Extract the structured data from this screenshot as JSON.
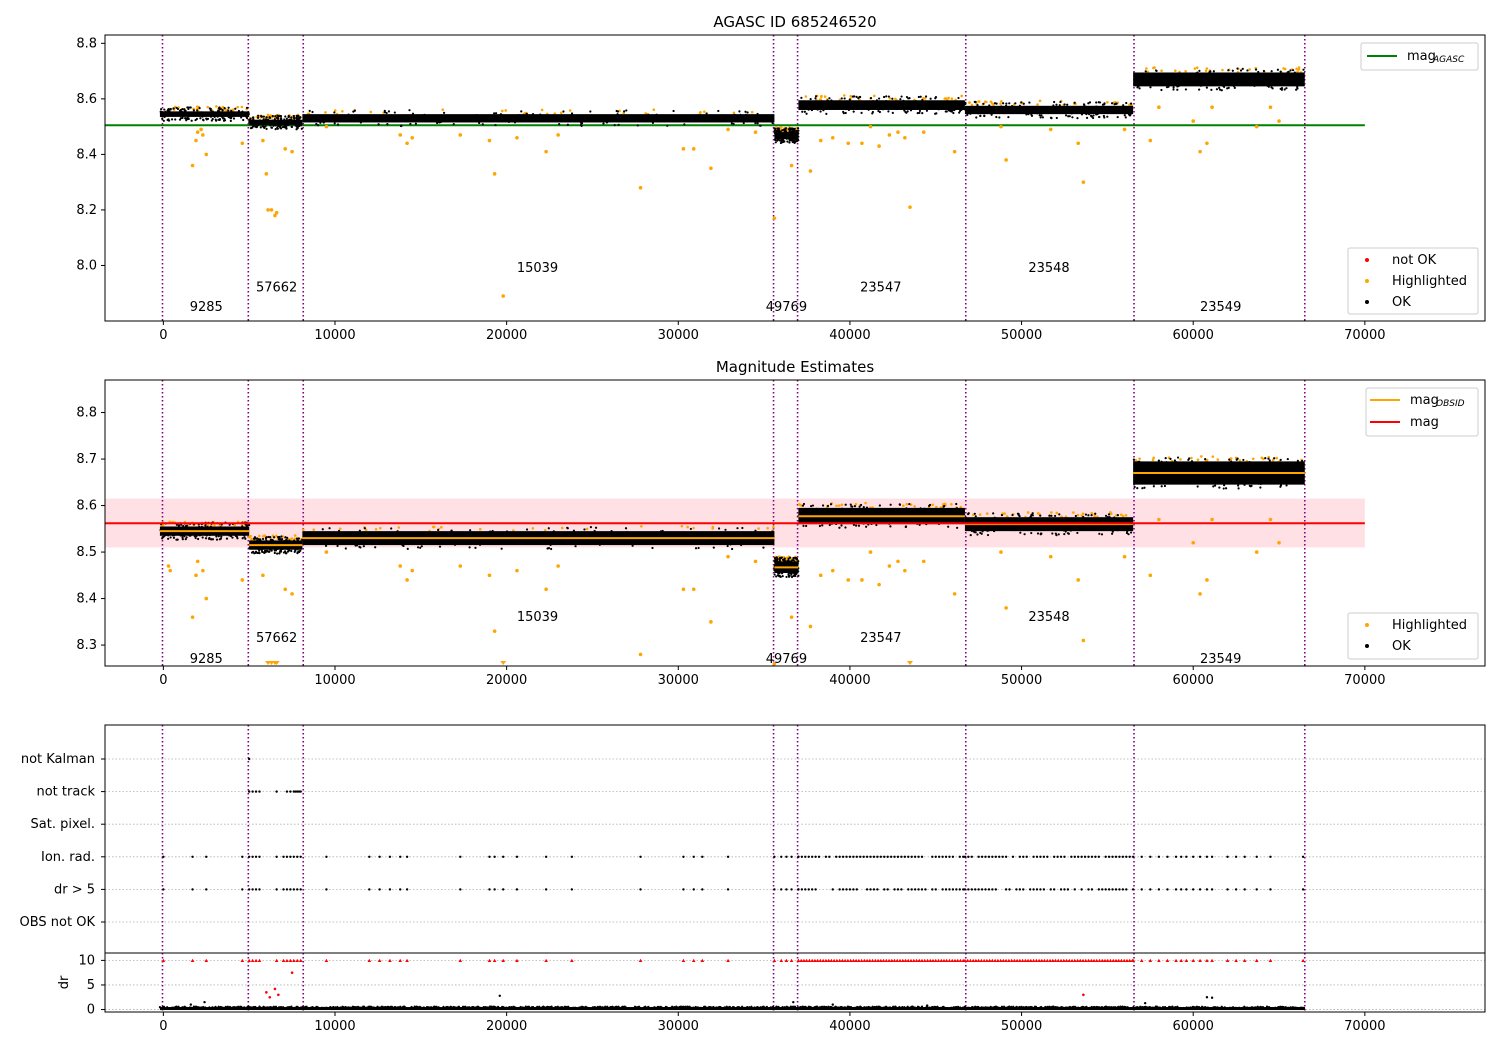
{
  "colors": {
    "ok": "#000000",
    "highlighted": "#ffa500",
    "not_ok": "#ff0000",
    "agasc_line": "#008000",
    "mag_line": "#ff0000",
    "obs_line": "#ffa500",
    "band": "#ffe0e4",
    "boundary": "#800080",
    "dark_fill": "#4a2506"
  },
  "chart_data": [
    {
      "type": "scatter",
      "title": "AGASC ID 685246520",
      "xlim": [
        -3400,
        77000
      ],
      "ylim": [
        7.8,
        8.83
      ],
      "x_ticks": [
        0,
        10000,
        20000,
        30000,
        40000,
        50000,
        60000,
        70000
      ],
      "y_ticks": [
        8.0,
        8.2,
        8.4,
        8.6,
        8.8
      ],
      "y_tick_labels": [
        "8.0",
        "8.2",
        "8.4",
        "8.6",
        "8.8"
      ],
      "mag_agasc": 8.505,
      "mag_agasc_x_range": [
        -3400,
        70000
      ],
      "legend_top": [
        {
          "label": "mag",
          "sub": "AGASC",
          "style": "line",
          "color": "agasc_line"
        }
      ],
      "legend_bottom": [
        {
          "label": "not OK",
          "color": "not_ok"
        },
        {
          "label": "Highlighted",
          "color": "highlighted"
        },
        {
          "label": "OK",
          "color": "ok"
        }
      ],
      "obsid_label_y": [
        7.85,
        7.92,
        7.99
      ],
      "highlighted_points": [
        [
          1700,
          8.36
        ],
        [
          1900,
          8.45
        ],
        [
          2000,
          8.48
        ],
        [
          2200,
          8.49
        ],
        [
          2300,
          8.47
        ],
        [
          2500,
          8.4
        ],
        [
          4600,
          8.44
        ],
        [
          5800,
          8.45
        ],
        [
          6000,
          8.33
        ],
        [
          6100,
          8.2
        ],
        [
          6300,
          8.2
        ],
        [
          6500,
          8.18
        ],
        [
          6600,
          8.19
        ],
        [
          7100,
          8.42
        ],
        [
          7500,
          8.41
        ],
        [
          9500,
          8.5
        ],
        [
          13800,
          8.47
        ],
        [
          14200,
          8.44
        ],
        [
          14500,
          8.46
        ],
        [
          17300,
          8.47
        ],
        [
          19000,
          8.45
        ],
        [
          19300,
          8.33
        ],
        [
          19800,
          7.89
        ],
        [
          20600,
          8.46
        ],
        [
          22300,
          8.41
        ],
        [
          23000,
          8.47
        ],
        [
          27800,
          8.28
        ],
        [
          30300,
          8.42
        ],
        [
          30900,
          8.42
        ],
        [
          31900,
          8.35
        ],
        [
          32900,
          8.49
        ],
        [
          34500,
          8.48
        ],
        [
          35600,
          8.17
        ],
        [
          36600,
          8.36
        ],
        [
          37700,
          8.34
        ],
        [
          38300,
          8.45
        ],
        [
          39000,
          8.46
        ],
        [
          39900,
          8.44
        ],
        [
          40700,
          8.44
        ],
        [
          41200,
          8.5
        ],
        [
          41700,
          8.43
        ],
        [
          42300,
          8.47
        ],
        [
          42800,
          8.48
        ],
        [
          43200,
          8.46
        ],
        [
          43500,
          8.21
        ],
        [
          44300,
          8.48
        ],
        [
          46100,
          8.41
        ],
        [
          48800,
          8.5
        ],
        [
          49100,
          8.38
        ],
        [
          51700,
          8.49
        ],
        [
          53300,
          8.44
        ],
        [
          53600,
          8.3
        ],
        [
          56000,
          8.49
        ],
        [
          57500,
          8.45
        ],
        [
          58000,
          8.57
        ],
        [
          60000,
          8.52
        ],
        [
          60400,
          8.41
        ],
        [
          60800,
          8.44
        ],
        [
          61100,
          8.57
        ],
        [
          63700,
          8.5
        ],
        [
          64500,
          8.57
        ],
        [
          65000,
          8.52
        ]
      ],
      "not_ok_points": []
    },
    {
      "type": "scatter",
      "title": "Magnitude Estimates",
      "xlim": [
        -3400,
        77000
      ],
      "ylim": [
        8.255,
        8.87
      ],
      "x_ticks": [
        0,
        10000,
        20000,
        30000,
        40000,
        50000,
        60000,
        70000
      ],
      "y_ticks": [
        8.3,
        8.4,
        8.5,
        8.6,
        8.7,
        8.8
      ],
      "y_tick_labels": [
        "8.3",
        "8.4",
        "8.5",
        "8.6",
        "8.7",
        "8.8"
      ],
      "mag": 8.562,
      "mag_band": [
        8.51,
        8.615
      ],
      "mag_x_range": [
        -3400,
        70000
      ],
      "legend_top": [
        {
          "label": "mag",
          "sub": "OBSID",
          "style": "line",
          "color": "obs_line"
        },
        {
          "label": "mag",
          "sub": "",
          "style": "line",
          "color": "mag_line"
        }
      ],
      "legend_bottom": [
        {
          "label": "Highlighted",
          "color": "highlighted"
        },
        {
          "label": "OK",
          "color": "ok"
        }
      ],
      "obsid_label_y": [
        8.27,
        8.315,
        8.36
      ],
      "highlighted_points": [
        [
          300,
          8.47
        ],
        [
          400,
          8.46
        ],
        [
          1700,
          8.36
        ],
        [
          1900,
          8.45
        ],
        [
          2000,
          8.48
        ],
        [
          2300,
          8.46
        ],
        [
          2500,
          8.4
        ],
        [
          4600,
          8.44
        ],
        [
          5800,
          8.45
        ],
        [
          7100,
          8.42
        ],
        [
          7500,
          8.41
        ],
        [
          9500,
          8.5
        ],
        [
          13800,
          8.47
        ],
        [
          14200,
          8.44
        ],
        [
          14500,
          8.46
        ],
        [
          17300,
          8.47
        ],
        [
          19000,
          8.45
        ],
        [
          19300,
          8.33
        ],
        [
          20600,
          8.46
        ],
        [
          22300,
          8.42
        ],
        [
          23000,
          8.47
        ],
        [
          27800,
          8.28
        ],
        [
          30300,
          8.42
        ],
        [
          30900,
          8.42
        ],
        [
          31900,
          8.35
        ],
        [
          32900,
          8.49
        ],
        [
          34500,
          8.48
        ],
        [
          35600,
          8.26
        ],
        [
          36600,
          8.36
        ],
        [
          37700,
          8.34
        ],
        [
          38300,
          8.45
        ],
        [
          39000,
          8.46
        ],
        [
          39900,
          8.44
        ],
        [
          40700,
          8.44
        ],
        [
          41200,
          8.5
        ],
        [
          41700,
          8.43
        ],
        [
          42300,
          8.47
        ],
        [
          42800,
          8.48
        ],
        [
          43200,
          8.46
        ],
        [
          44300,
          8.48
        ],
        [
          46100,
          8.41
        ],
        [
          48800,
          8.5
        ],
        [
          49100,
          8.38
        ],
        [
          51700,
          8.49
        ],
        [
          53300,
          8.44
        ],
        [
          53600,
          8.31
        ],
        [
          56000,
          8.49
        ],
        [
          57500,
          8.45
        ],
        [
          58000,
          8.57
        ],
        [
          60000,
          8.52
        ],
        [
          60400,
          8.41
        ],
        [
          60800,
          8.44
        ],
        [
          61100,
          8.57
        ],
        [
          63700,
          8.5
        ],
        [
          64500,
          8.57
        ],
        [
          65000,
          8.52
        ]
      ],
      "clipped_points": [
        [
          6100,
          8.26
        ],
        [
          6300,
          8.26
        ],
        [
          6500,
          8.26
        ],
        [
          6600,
          8.26
        ],
        [
          19800,
          8.26
        ],
        [
          43500,
          8.26
        ]
      ]
    },
    {
      "type": "scatter",
      "title": "",
      "xlim": [
        -3400,
        77000
      ],
      "x_ticks": [
        0,
        10000,
        20000,
        30000,
        40000,
        50000,
        60000,
        70000
      ],
      "flag_rows": [
        "not Kalman",
        "not track",
        "Sat. pixel.",
        "Ion. rad.",
        "dr > 5",
        "OBS not OK"
      ],
      "dr_ylabel": "dr",
      "dr_ylim": [
        -0.5,
        11.5
      ],
      "dr_ticks": [
        0,
        5,
        10
      ],
      "not_kalman_x": [
        5000
      ],
      "not_track_x": [
        5000,
        5200,
        5400,
        5600,
        6600,
        7200,
        7400,
        7600,
        7700,
        7800,
        7900,
        8000
      ],
      "ion_rad_x": [
        0,
        1700,
        2500,
        4600,
        5000,
        5200,
        5400,
        5600,
        6600,
        7000,
        7200,
        7400,
        7600,
        7800,
        8000,
        9500,
        12000,
        12600,
        13200,
        13800,
        14200,
        17300,
        19000,
        19300,
        19800,
        20600,
        22300,
        23800,
        27800,
        30300,
        30900,
        31400,
        32900,
        35600,
        36000,
        36300,
        36600,
        37000,
        53300,
        56500,
        57000,
        57500,
        58000,
        58500,
        59000,
        59300,
        59600,
        60000,
        60400,
        60800,
        61100,
        62000,
        62500,
        63000,
        63700,
        64500,
        66400
      ],
      "dr_gt5_x": [
        0,
        1700,
        2500,
        4600,
        5000,
        5200,
        5400,
        5600,
        6600,
        7000,
        7200,
        7400,
        7600,
        7800,
        8000,
        9500,
        12000,
        12600,
        13200,
        13800,
        14200,
        17300,
        19000,
        19300,
        19800,
        20600,
        22300,
        23800,
        27800,
        30300,
        30900,
        31400,
        32900,
        35600,
        36000,
        36300,
        36600,
        37000,
        56500,
        57000,
        57500,
        58000,
        58500,
        59000,
        59300,
        59600,
        60000,
        60400,
        60800,
        61100,
        62000,
        62500,
        63000,
        63700,
        64500,
        66400
      ],
      "dense_flag_ranges": [
        [
          37000,
          46700
        ],
        [
          46700,
          56500
        ]
      ],
      "red_dr_points": [
        [
          6000,
          3.5
        ],
        [
          6200,
          2.5
        ],
        [
          6500,
          4.2
        ],
        [
          6700,
          3.0
        ],
        [
          7500,
          7.5
        ],
        [
          53600,
          3.0
        ]
      ],
      "black_dr_points": [
        [
          1600,
          1.0
        ],
        [
          2400,
          1.5
        ],
        [
          19600,
          2.8
        ],
        [
          36700,
          1.5
        ],
        [
          39000,
          1.0
        ],
        [
          44500,
          0.8
        ],
        [
          57200,
          1.3
        ],
        [
          60800,
          2.5
        ],
        [
          61100,
          2.4
        ]
      ]
    }
  ],
  "segments": [
    {
      "obsid": "9285",
      "x_start": -200,
      "x_end": 5000,
      "mag_obs": 8.545,
      "low": 8.535,
      "high": 8.555,
      "label_x": 2500,
      "label_row": 0
    },
    {
      "obsid": "57662",
      "x_start": 5000,
      "x_end": 8100,
      "mag_obs": 8.515,
      "low": 8.505,
      "high": 8.525,
      "label_x": 6600,
      "label_row": 1
    },
    {
      "obsid": "15039",
      "x_start": 8100,
      "x_end": 35600,
      "mag_obs": 8.53,
      "low": 8.515,
      "high": 8.545,
      "label_x": 21800,
      "label_row": 2
    },
    {
      "obsid": "49769",
      "x_start": 35600,
      "x_end": 37000,
      "mag_obs": 8.467,
      "low": 8.455,
      "high": 8.48,
      "label_x": 36300,
      "label_row": 0
    },
    {
      "obsid": "23547",
      "x_start": 37000,
      "x_end": 46700,
      "mag_obs": 8.577,
      "low": 8.56,
      "high": 8.595,
      "label_x": 41800,
      "label_row": 1
    },
    {
      "obsid": "23548",
      "x_start": 46700,
      "x_end": 56500,
      "mag_obs": 8.56,
      "low": 8.545,
      "high": 8.575,
      "label_x": 51600,
      "label_row": 2
    },
    {
      "obsid": "23549",
      "x_start": 56500,
      "x_end": 66500,
      "mag_obs": 8.67,
      "low": 8.645,
      "high": 8.695,
      "label_x": 61600,
      "label_row": 0
    }
  ],
  "boundaries_x": [
    -50,
    4950,
    8150,
    35550,
    36950,
    46750,
    56550,
    66500
  ]
}
